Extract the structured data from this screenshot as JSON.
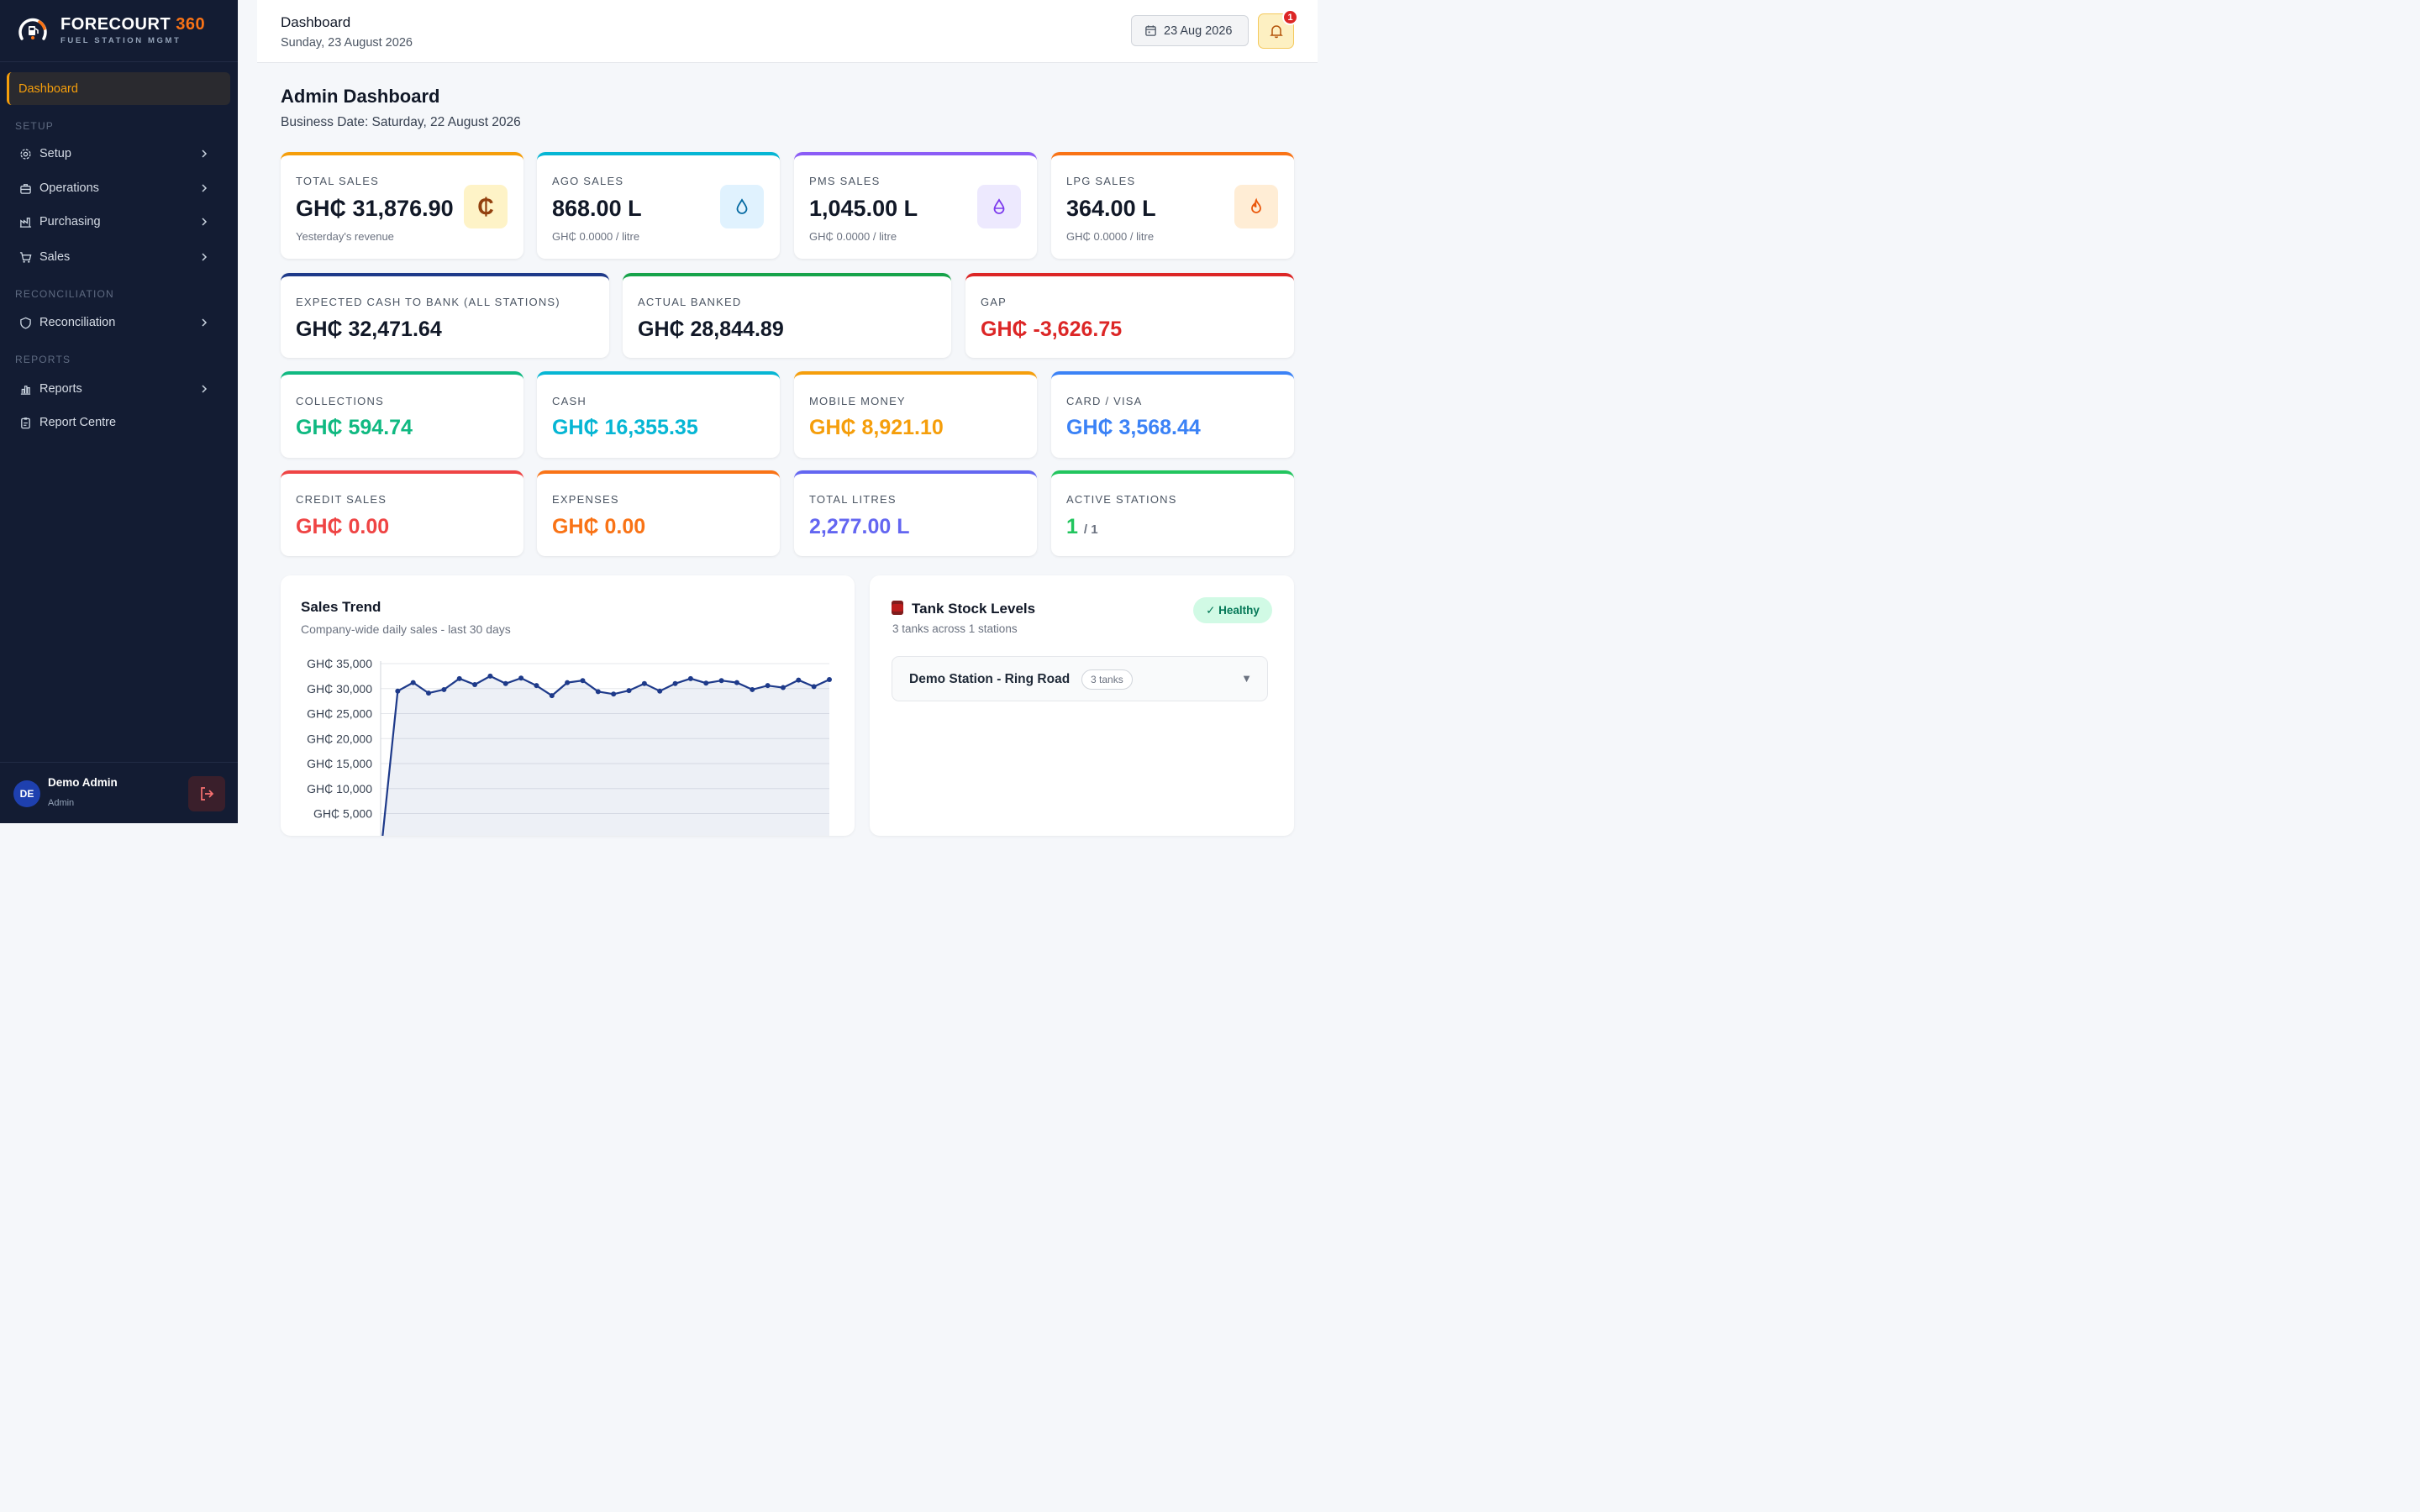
{
  "brand": {
    "name": "FORECOURT",
    "name_accent": "360",
    "tagline": "FUEL STATION MGMT"
  },
  "sidebar": {
    "active_item": "Dashboard",
    "sections": [
      {
        "title": "SETUP"
      },
      {
        "title": "RECONCILIATION"
      },
      {
        "title": "REPORTS"
      }
    ],
    "items": [
      {
        "label": "Setup",
        "icon": "gear-icon"
      },
      {
        "label": "Operations",
        "icon": "briefcase-icon"
      },
      {
        "label": "Purchasing",
        "icon": "factory-icon"
      },
      {
        "label": "Sales",
        "icon": "cart-icon"
      },
      {
        "label": "Reconciliation",
        "icon": "shield-icon"
      },
      {
        "label": "Reports",
        "icon": "bar-chart-icon"
      },
      {
        "label": "Report Centre",
        "icon": "clipboard-icon"
      }
    ],
    "user": {
      "initials": "DE",
      "name": "Demo Admin",
      "role": "Admin"
    }
  },
  "header": {
    "title": "Dashboard",
    "date_line": "Sunday, 23 August 2026",
    "date_button": "23 Aug 2026",
    "notifications": "1"
  },
  "main": {
    "title": "Admin Dashboard",
    "business_date": "Business Date: Saturday, 22 August 2026"
  },
  "kpi_row1": [
    {
      "label": "TOTAL SALES",
      "value": "GH₵ 31,876.90",
      "sub": "Yesterday's revenue",
      "color": "#f59e0b",
      "icon": "cedi-icon"
    },
    {
      "label": "AGO SALES",
      "value": "868.00 L",
      "sub": "GH₵ 0.0000 / litre",
      "color": "#06b6d4",
      "icon": "drop-icon"
    },
    {
      "label": "PMS SALES",
      "value": "1,045.00 L",
      "sub": "GH₵ 0.0000 / litre",
      "color": "#8b5cf6",
      "icon": "drop-half-icon"
    },
    {
      "label": "LPG SALES",
      "value": "364.00 L",
      "sub": "GH₵ 0.0000 / litre",
      "color": "#f97316",
      "icon": "flame-icon"
    }
  ],
  "kpi_row2": [
    {
      "label": "EXPECTED CASH TO BANK (ALL STATIONS)",
      "value": "GH₵ 32,471.64",
      "color": "#1e3a8a"
    },
    {
      "label": "ACTUAL BANKED",
      "value": "GH₵ 28,844.89",
      "color": "#16a34a"
    },
    {
      "label": "GAP",
      "value": "GH₵ -3,626.75",
      "color": "#dc2626"
    }
  ],
  "kpi_row3": [
    {
      "label": "COLLECTIONS",
      "value": "GH₵ 594.74",
      "color": "#10b981"
    },
    {
      "label": "CASH",
      "value": "GH₵ 16,355.35",
      "color": "#06b6d4"
    },
    {
      "label": "MOBILE MONEY",
      "value": "GH₵ 8,921.10",
      "color": "#f59e0b"
    },
    {
      "label": "CARD / VISA",
      "value": "GH₵ 3,568.44",
      "color": "#3b82f6"
    }
  ],
  "kpi_row4": [
    {
      "label": "CREDIT SALES",
      "value": "GH₵ 0.00",
      "color": "#ef4444"
    },
    {
      "label": "EXPENSES",
      "value": "GH₵ 0.00",
      "color": "#f97316"
    },
    {
      "label": "TOTAL LITRES",
      "value": "2,277.00 L",
      "color": "#6366f1"
    },
    {
      "label": "ACTIVE STATIONS",
      "value": "1",
      "value_suffix": "/ 1",
      "color": "#22c55e"
    }
  ],
  "sales_trend": {
    "title": "Sales Trend",
    "subtitle": "Company-wide daily sales - last 30 days"
  },
  "tank_stock": {
    "title": "Tank Stock Levels",
    "subtitle": "3 tanks across 1 stations",
    "status": "✓ Healthy",
    "station": {
      "name": "Demo Station - Ring Road",
      "tanks": "3 tanks"
    }
  },
  "chart_data": {
    "type": "area",
    "title": "Sales Trend",
    "subtitle": "Company-wide daily sales - last 30 days",
    "xlabel": "",
    "ylabel": "",
    "ylim": [
      0,
      35000
    ],
    "yticks": [
      "GH₵ 5,000",
      "GH₵ 10,000",
      "GH₵ 15,000",
      "GH₵ 20,000",
      "GH₵ 25,000",
      "GH₵ 30,000",
      "GH₵ 35,000"
    ],
    "ytick_values": [
      5000,
      10000,
      15000,
      20000,
      25000,
      30000,
      35000
    ],
    "values": [
      0,
      29500,
      31200,
      29100,
      29800,
      32000,
      30800,
      32500,
      31000,
      32100,
      30600,
      28600,
      31200,
      31600,
      29400,
      28900,
      29600,
      31000,
      29500,
      31000,
      32000,
      31100,
      31600,
      31200,
      29800,
      30600,
      30200,
      31700,
      30400,
      31800
    ],
    "grid": true,
    "legend": "none",
    "color": "#1e3a8a"
  }
}
